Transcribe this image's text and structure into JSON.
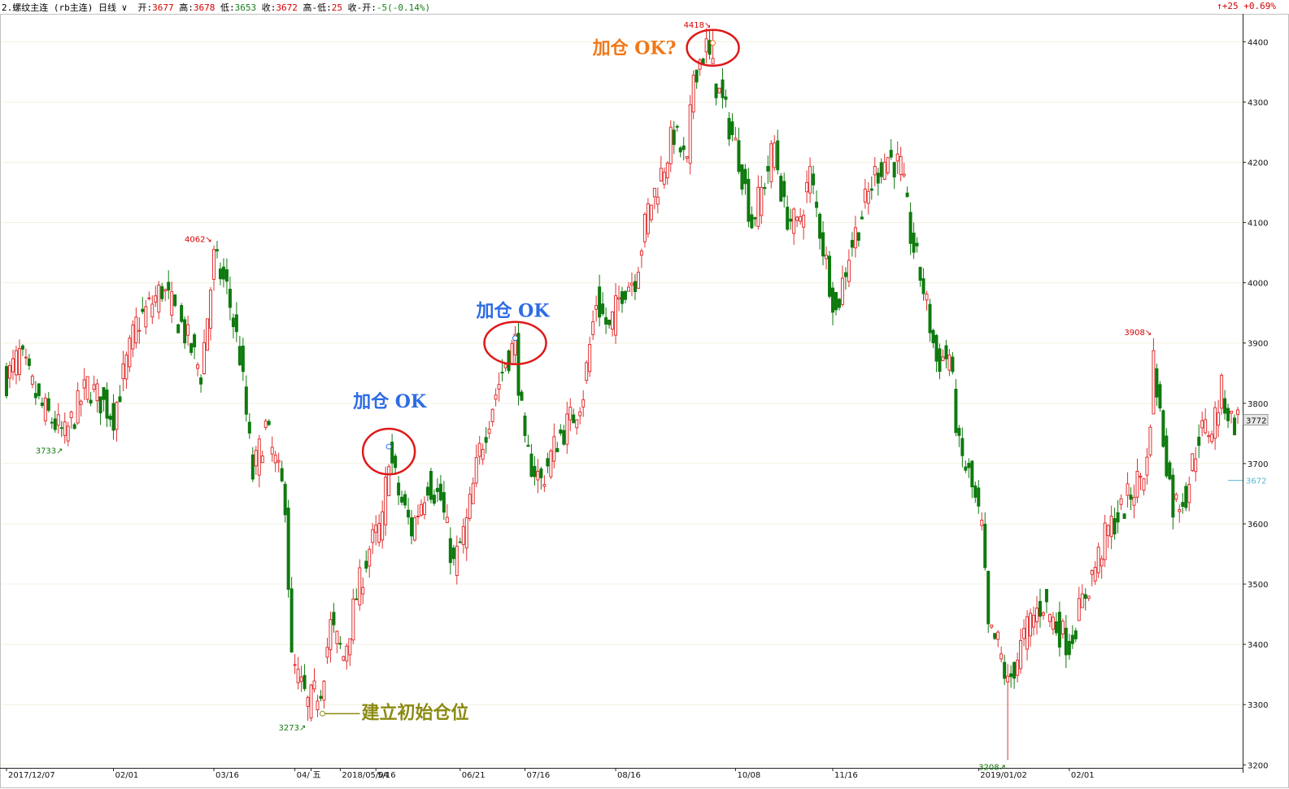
{
  "header": {
    "symbol": "2.螺纹主连 (rb主连)",
    "period": "日线",
    "open_label": "开:",
    "open": "3677",
    "high_label": "高:",
    "high": "3678",
    "low_label": "低:",
    "low": "3653",
    "close_label": "收:",
    "close": "3672",
    "range_label": "高-低:",
    "range": "25",
    "change_label": "收-开:",
    "change": "-5(-0.14%)",
    "right_change": "↑+25 +0.69%"
  },
  "colors": {
    "up": "#e23030",
    "down": "#0f7a0f",
    "axis": "#222222",
    "grid": "#f3f0e0",
    "annotation_blue": "#2e6be6",
    "annotation_orange": "#f07818",
    "annotation_olive": "#8b8a12",
    "circle": "#e01818"
  },
  "chart_data": {
    "type": "candlestick",
    "ylim": [
      3195,
      4445
    ],
    "y_ticks": [
      3200,
      3300,
      3400,
      3500,
      3600,
      3700,
      3800,
      3900,
      4000,
      4100,
      4200,
      4300,
      4400
    ],
    "x_tick_labels": [
      "2017/12/07",
      "02/01",
      "03/16",
      "04/",
      "五",
      "2018/05/04",
      "5/16",
      "06/21",
      "07/16",
      "08/16",
      "10/08",
      "11/16",
      "2019/01/02",
      "02/01"
    ],
    "current_price_tag": "3772",
    "reference_price_tag": "3672",
    "extreme_labels": [
      {
        "text": "4062↘",
        "value": 4062
      },
      {
        "text": "3733↗",
        "value": 3733
      },
      {
        "text": "3273↗",
        "value": 3273
      },
      {
        "text": "4418↘",
        "value": 4418
      },
      {
        "text": "3208↗",
        "value": 3208
      },
      {
        "text": "3908↘",
        "value": 3908
      }
    ],
    "annotations": [
      {
        "text": "加仓 OK",
        "kind": "blue"
      },
      {
        "text": "加仓 OK",
        "kind": "blue"
      },
      {
        "text": "加仓 OK?",
        "kind": "orange"
      },
      {
        "text": "建立初始仓位",
        "kind": "olive"
      }
    ],
    "anchors": [
      {
        "day": 0,
        "close": 3840
      },
      {
        "day": 4,
        "close": 3880
      },
      {
        "day": 10,
        "close": 3800
      },
      {
        "day": 18,
        "close": 3745
      },
      {
        "day": 25,
        "close": 3830
      },
      {
        "day": 33,
        "close": 3780
      },
      {
        "day": 40,
        "close": 3930
      },
      {
        "day": 48,
        "close": 3990
      },
      {
        "day": 54,
        "close": 3930
      },
      {
        "day": 60,
        "close": 3850
      },
      {
        "day": 64,
        "close": 4040
      },
      {
        "day": 68,
        "close": 3990
      },
      {
        "day": 72,
        "close": 3880
      },
      {
        "day": 76,
        "close": 3680
      },
      {
        "day": 80,
        "close": 3760
      },
      {
        "day": 86,
        "close": 3640
      },
      {
        "day": 88,
        "close": 3370
      },
      {
        "day": 93,
        "close": 3300
      },
      {
        "day": 97,
        "close": 3330
      },
      {
        "day": 100,
        "close": 3430
      },
      {
        "day": 104,
        "close": 3380
      },
      {
        "day": 108,
        "close": 3480
      },
      {
        "day": 112,
        "close": 3560
      },
      {
        "day": 116,
        "close": 3600
      },
      {
        "day": 118,
        "close": 3720
      },
      {
        "day": 121,
        "close": 3650
      },
      {
        "day": 125,
        "close": 3590
      },
      {
        "day": 130,
        "close": 3670
      },
      {
        "day": 134,
        "close": 3640
      },
      {
        "day": 138,
        "close": 3530
      },
      {
        "day": 142,
        "close": 3600
      },
      {
        "day": 146,
        "close": 3720
      },
      {
        "day": 150,
        "close": 3800
      },
      {
        "day": 154,
        "close": 3870
      },
      {
        "day": 157,
        "close": 3900
      },
      {
        "day": 160,
        "close": 3720
      },
      {
        "day": 165,
        "close": 3670
      },
      {
        "day": 170,
        "close": 3740
      },
      {
        "day": 175,
        "close": 3780
      },
      {
        "day": 178,
        "close": 3820
      },
      {
        "day": 182,
        "close": 3970
      },
      {
        "day": 186,
        "close": 3920
      },
      {
        "day": 190,
        "close": 3990
      },
      {
        "day": 194,
        "close": 4010
      },
      {
        "day": 198,
        "close": 4120
      },
      {
        "day": 202,
        "close": 4180
      },
      {
        "day": 206,
        "close": 4250
      },
      {
        "day": 210,
        "close": 4190
      },
      {
        "day": 212,
        "close": 4350
      },
      {
        "day": 216,
        "close": 4390
      },
      {
        "day": 219,
        "close": 4330
      },
      {
        "day": 222,
        "close": 4280
      },
      {
        "day": 226,
        "close": 4210
      },
      {
        "day": 230,
        "close": 4100
      },
      {
        "day": 234,
        "close": 4170
      },
      {
        "day": 237,
        "close": 4230
      },
      {
        "day": 240,
        "close": 4120
      },
      {
        "day": 244,
        "close": 4090
      },
      {
        "day": 248,
        "close": 4180
      },
      {
        "day": 252,
        "close": 4060
      },
      {
        "day": 256,
        "close": 3950
      },
      {
        "day": 260,
        "close": 4050
      },
      {
        "day": 265,
        "close": 4130
      },
      {
        "day": 268,
        "close": 4180
      },
      {
        "day": 272,
        "close": 4210
      },
      {
        "day": 276,
        "close": 4190
      },
      {
        "day": 279,
        "close": 4080
      },
      {
        "day": 283,
        "close": 3990
      },
      {
        "day": 287,
        "close": 3870
      },
      {
        "day": 291,
        "close": 3880
      },
      {
        "day": 294,
        "close": 3720
      },
      {
        "day": 297,
        "close": 3680
      },
      {
        "day": 301,
        "close": 3590
      },
      {
        "day": 303,
        "close": 3420
      },
      {
        "day": 306,
        "close": 3400
      },
      {
        "day": 309,
        "close": 3330
      },
      {
        "day": 312,
        "close": 3380
      },
      {
        "day": 316,
        "close": 3440
      },
      {
        "day": 320,
        "close": 3470
      },
      {
        "day": 324,
        "close": 3430
      },
      {
        "day": 328,
        "close": 3400
      },
      {
        "day": 332,
        "close": 3470
      },
      {
        "day": 336,
        "close": 3530
      },
      {
        "day": 340,
        "close": 3590
      },
      {
        "day": 344,
        "close": 3620
      },
      {
        "day": 348,
        "close": 3660
      },
      {
        "day": 352,
        "close": 3700
      },
      {
        "day": 354,
        "close": 3870
      },
      {
        "day": 356,
        "close": 3780
      },
      {
        "day": 360,
        "close": 3630
      },
      {
        "day": 364,
        "close": 3650
      },
      {
        "day": 368,
        "close": 3750
      },
      {
        "day": 372,
        "close": 3760
      },
      {
        "day": 375,
        "close": 3820
      },
      {
        "day": 378,
        "close": 3770
      },
      {
        "day": 380,
        "close": 3772
      }
    ]
  }
}
